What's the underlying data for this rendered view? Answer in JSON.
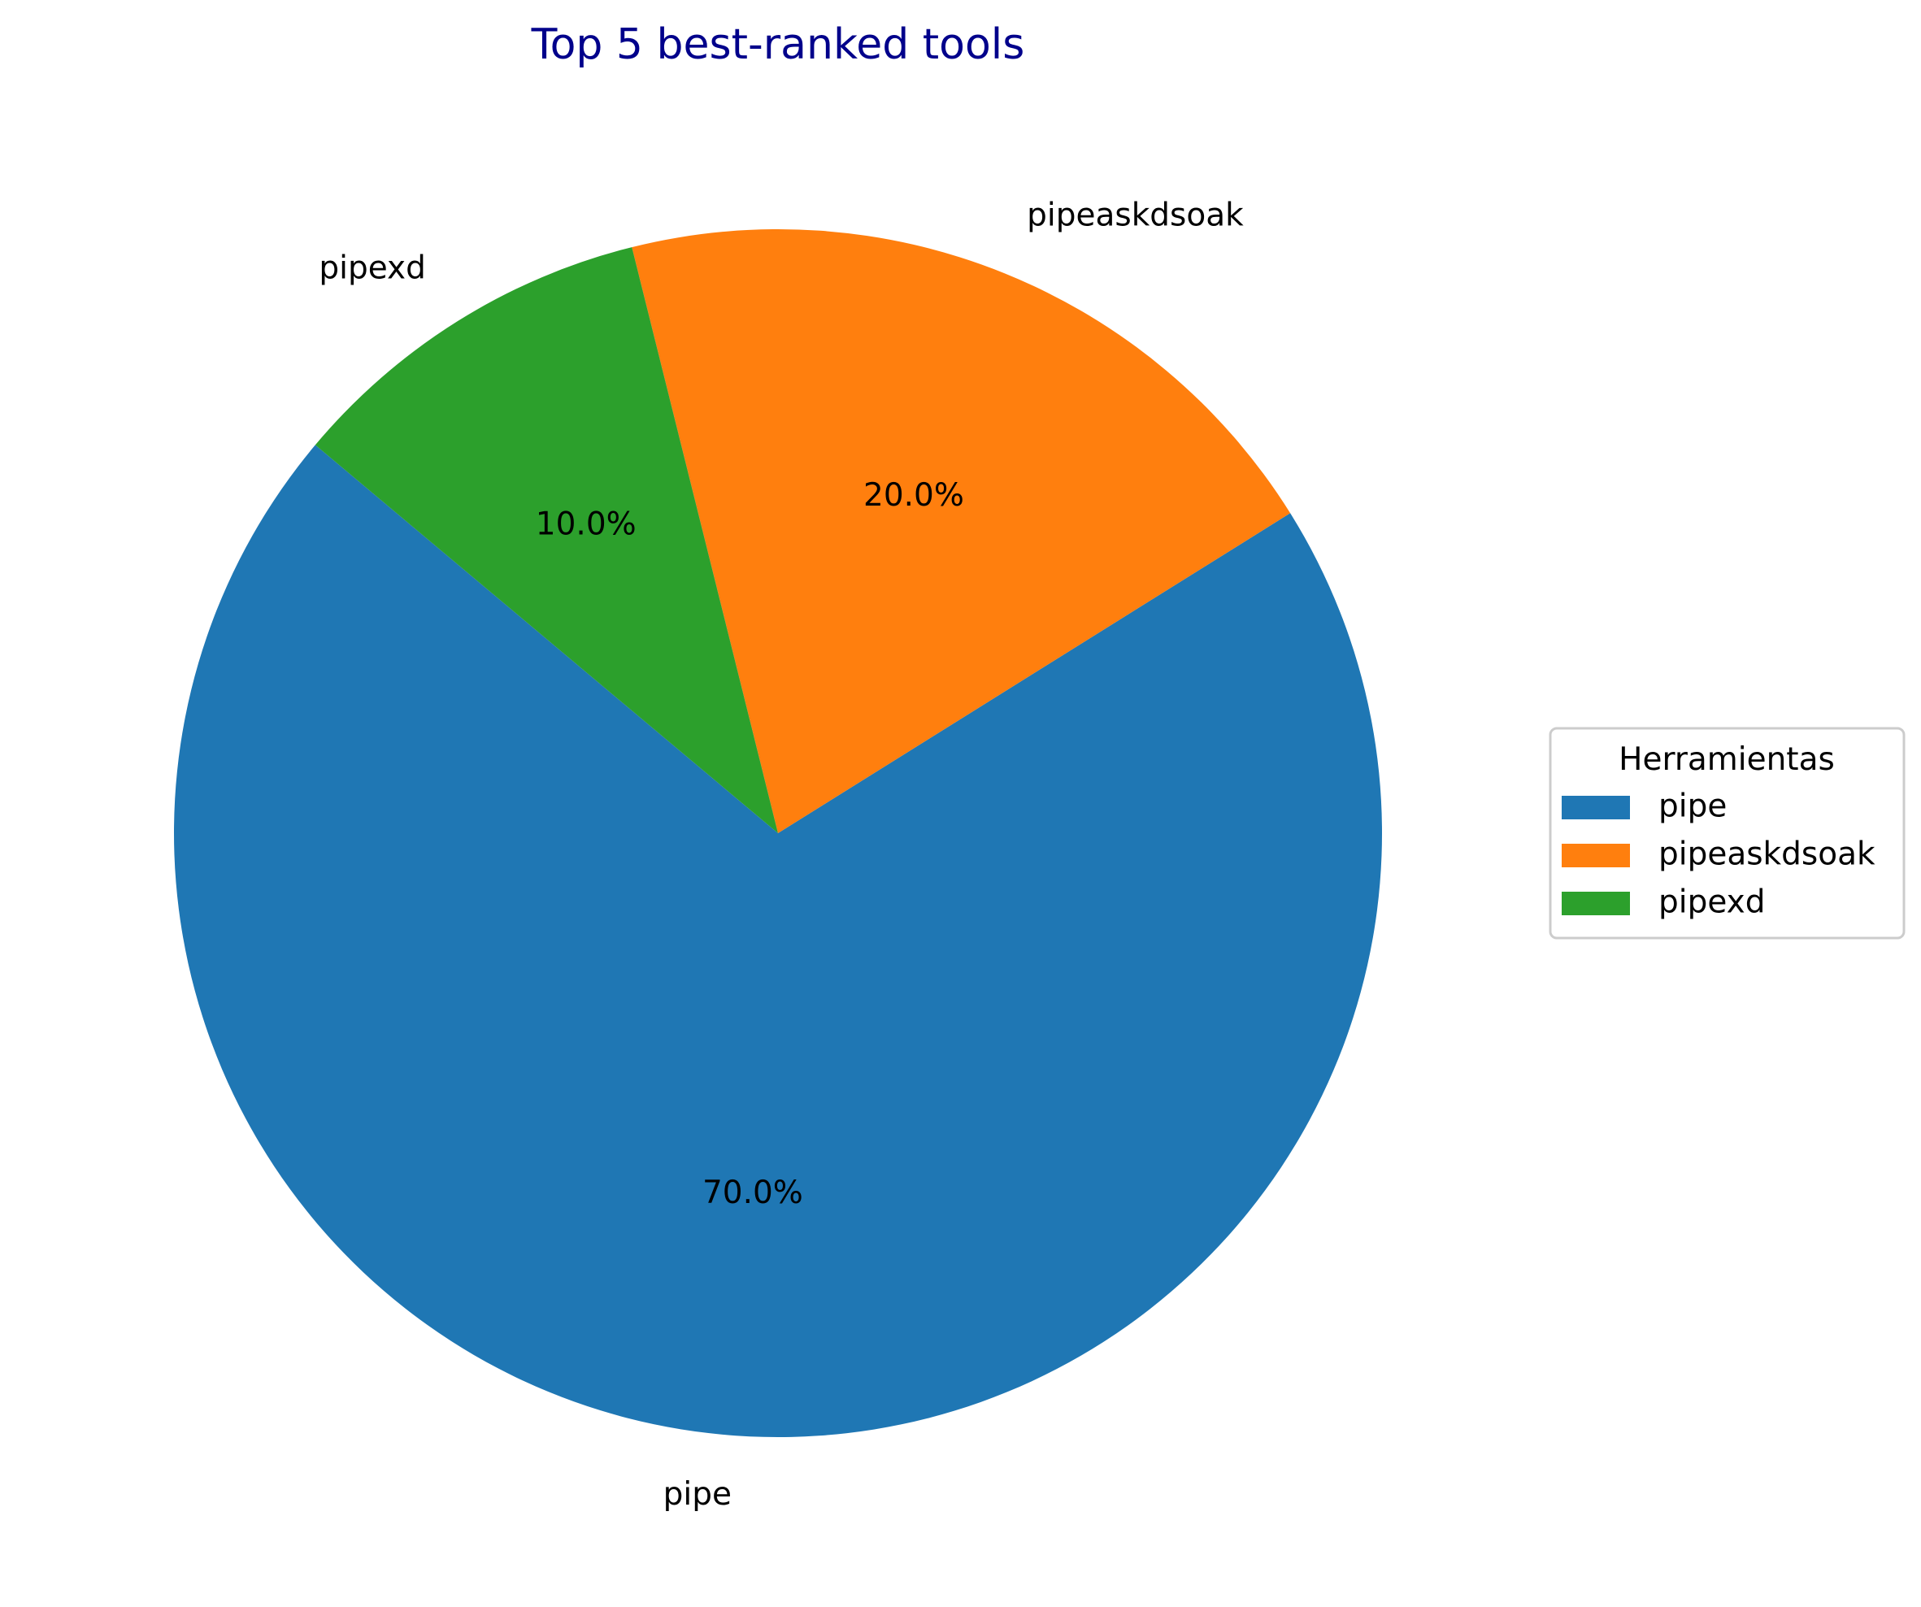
{
  "chart_data": {
    "type": "pie",
    "title": "Top 5 best-ranked tools",
    "title_color": "#00008b",
    "categories": [
      "pipe",
      "pipeaskdsoak",
      "pipexd"
    ],
    "values": [
      70,
      20,
      10
    ],
    "percent_labels": [
      "70.0%",
      "20.0%",
      "10.0%"
    ],
    "colors": [
      "#1f77b4",
      "#ff7f0e",
      "#2ca02c"
    ],
    "legend": {
      "title": "Herramientas",
      "placement": "center-right",
      "entries": [
        "pipe",
        "pipeaskdsoak",
        "pipexd"
      ]
    }
  }
}
